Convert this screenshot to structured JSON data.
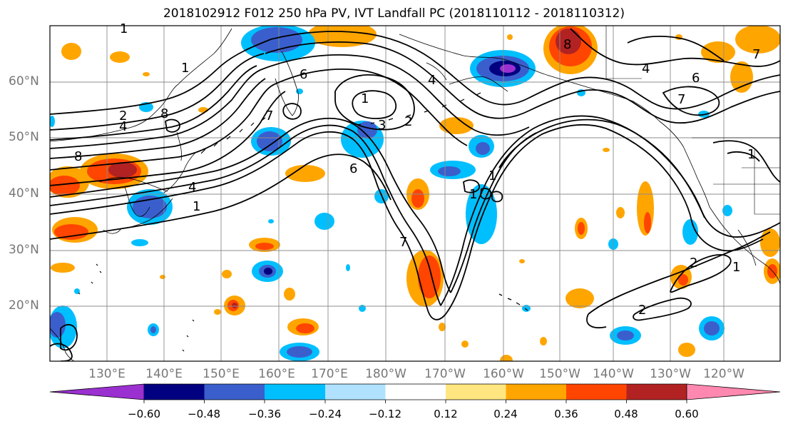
{
  "title": "2018102912 F012 250 hPa PV, IVT Landfall PC (2018110112 - 2018110312)",
  "lat_labels": [
    "60°N",
    "50°N",
    "40°N",
    "30°N",
    "20°N"
  ],
  "lon_labels": [
    "130°E",
    "140°E",
    "150°E",
    "160°E",
    "170°E",
    "180°W",
    "170°W",
    "160°W",
    "150°W",
    "140°W",
    "130°W",
    "120°W"
  ],
  "contour_labels": [
    "1",
    "1",
    "2",
    "4",
    "8",
    "6",
    "4",
    "1",
    "1",
    "2",
    "3",
    "6",
    "7",
    "2",
    "1",
    "4",
    "8",
    "7",
    "6",
    "7",
    "4",
    "2",
    "1",
    "7",
    "8",
    "1",
    "1"
  ],
  "colorbar": {
    "ticks": [
      "−0.60",
      "−0.48",
      "−0.36",
      "−0.24",
      "−0.12",
      "0.12",
      "0.24",
      "0.36",
      "0.48",
      "0.60"
    ],
    "colors": [
      "#9b30d0",
      "#000080",
      "#3a5fcd",
      "#00bfff",
      "#b0e2ff",
      "#ffffff",
      "#ffe680",
      "#ffa500",
      "#ff4500",
      "#b22222",
      "#ff88b0"
    ]
  },
  "colors": {
    "frame": "#000000",
    "grid": "#8c8c8c",
    "contour": "#000000",
    "tick_label": "#777777"
  }
}
